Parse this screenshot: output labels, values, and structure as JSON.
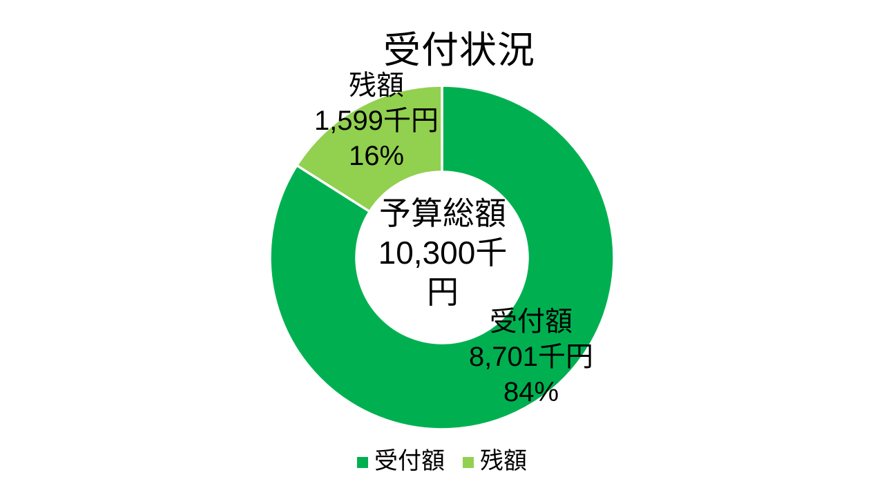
{
  "chart_data": {
    "type": "pie",
    "subtype": "doughnut",
    "title": "受付状況",
    "slices": [
      {
        "name": "受付額",
        "value": 8701,
        "value_label": "8,701千円",
        "percent": 84,
        "percent_label": "84%",
        "color": "#00B050"
      },
      {
        "name": "残額",
        "value": 1599,
        "value_label": "1,599千円",
        "percent": 16,
        "percent_label": "16%",
        "color": "#92D050"
      }
    ],
    "center_label": {
      "lines": [
        "予算総額",
        "10,300千",
        "円"
      ],
      "total_value": 10300,
      "unit": "千円"
    },
    "legend": [
      {
        "label": "受付額",
        "color": "#00B050"
      },
      {
        "label": "残額",
        "color": "#92D050"
      }
    ],
    "layout": {
      "start_angle_deg": 0,
      "direction": "clockwise",
      "hole_ratio": 0.5,
      "legend_position": "bottom",
      "separator_color": "#FFFFFF",
      "background": "#FFFFFF",
      "text_color": "#000000"
    }
  }
}
